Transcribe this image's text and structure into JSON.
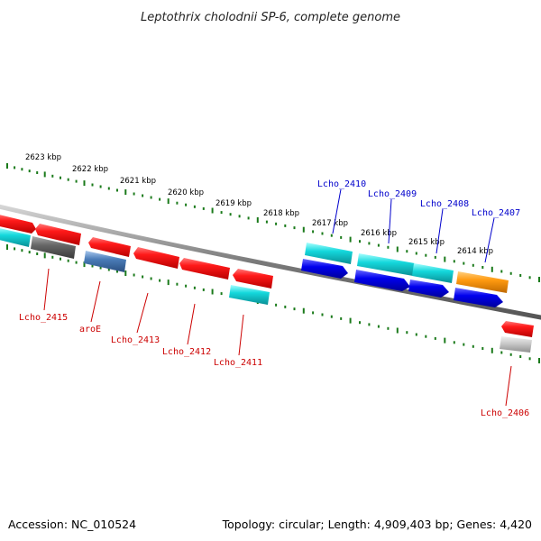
{
  "title": "Leptothrix cholodnii SP-6, complete genome",
  "footer": {
    "accession": "Accession: NC_010524",
    "topology": "Topology: circular; Length: 4,909,403 bp; Genes: 4,420"
  },
  "colors": {
    "forward_label": "#0000cc",
    "reverse_label": "#cc0000",
    "tick_green": "#1a7a1a",
    "backbone": "#7a7a7a"
  },
  "scale": {
    "kbp_labels": [
      "2623 kbp",
      "2622 kbp",
      "2621 kbp",
      "2620 kbp",
      "2619 kbp",
      "2618 kbp",
      "2617 kbp",
      "2616 kbp",
      "2615 kbp",
      "2614 kbp"
    ]
  },
  "genes": {
    "forward_labels": [
      "Lcho_2410",
      "Lcho_2409",
      "Lcho_2408",
      "Lcho_2407"
    ],
    "reverse_labels": [
      "Lcho_2415",
      "aroE",
      "Lcho_2413",
      "Lcho_2412",
      "Lcho_2411",
      "Lcho_2406"
    ]
  }
}
